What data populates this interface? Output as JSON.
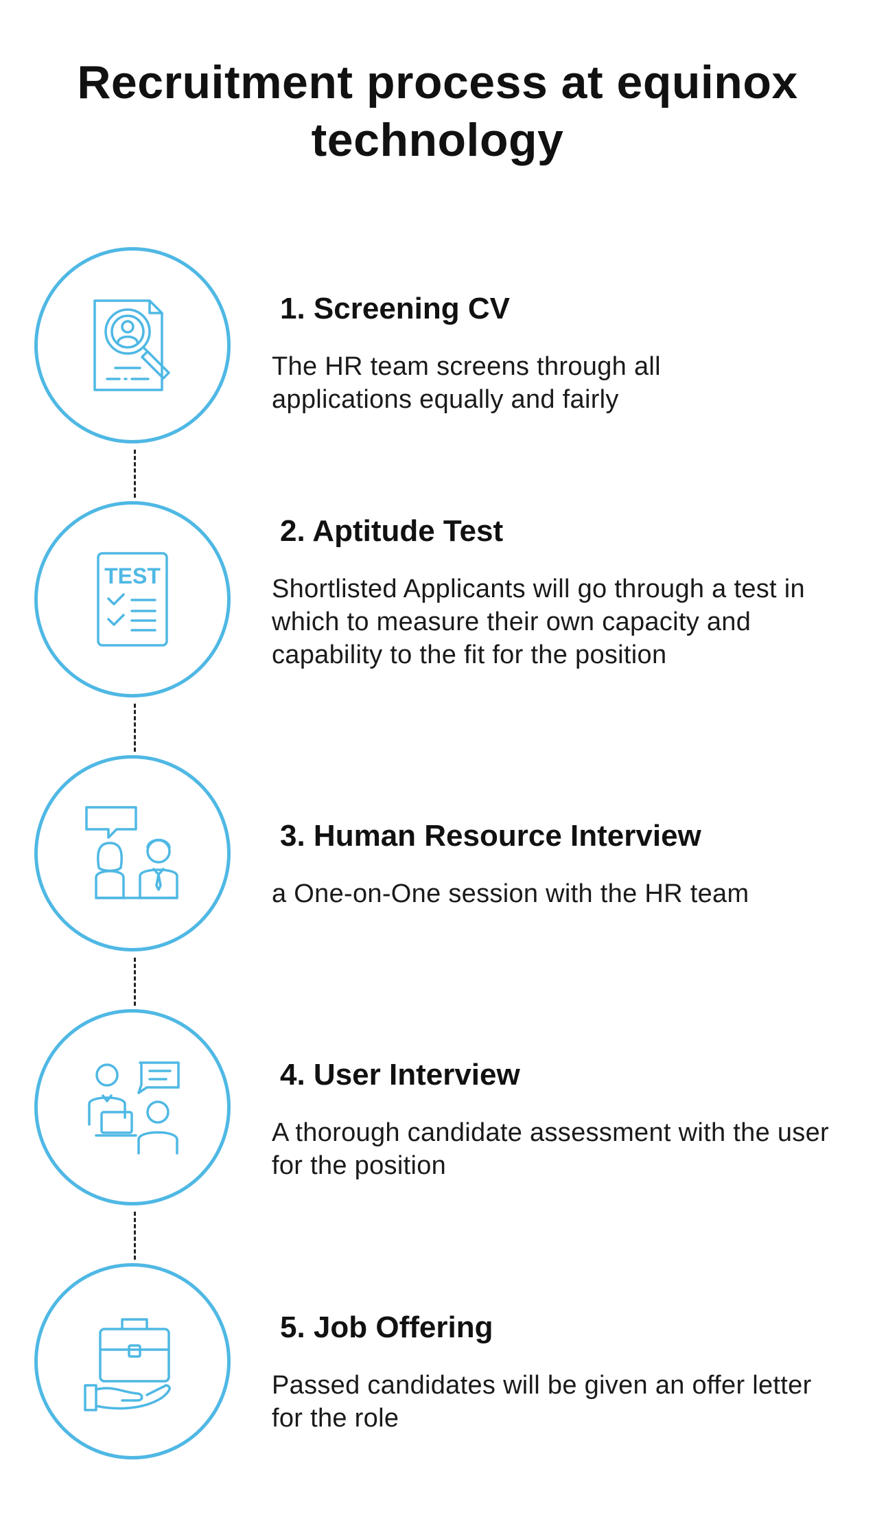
{
  "title": "Recruitment process at equinox technology",
  "accent_color": "#4fb8e4",
  "steps": [
    {
      "title": "1. Screening CV",
      "description": "The HR team screens through all applications equally and fairly",
      "icon": "cv-search-icon"
    },
    {
      "title": "2. Aptitude Test",
      "description": "Shortlisted Applicants will go through a test in which to measure their own capacity and capability to the fit for the position",
      "icon": "test-checklist-icon",
      "icon_text": "TEST"
    },
    {
      "title": "3. Human Resource Interview",
      "description": "a One-on-One session with the HR team",
      "icon": "hr-interview-icon"
    },
    {
      "title": "4. User Interview",
      "description": "A thorough candidate assessment with the user for the position",
      "icon": "user-interview-icon"
    },
    {
      "title": "5. Job Offering",
      "description": "Passed candidates will be given an offer letter for the role",
      "icon": "briefcase-hand-icon"
    }
  ]
}
